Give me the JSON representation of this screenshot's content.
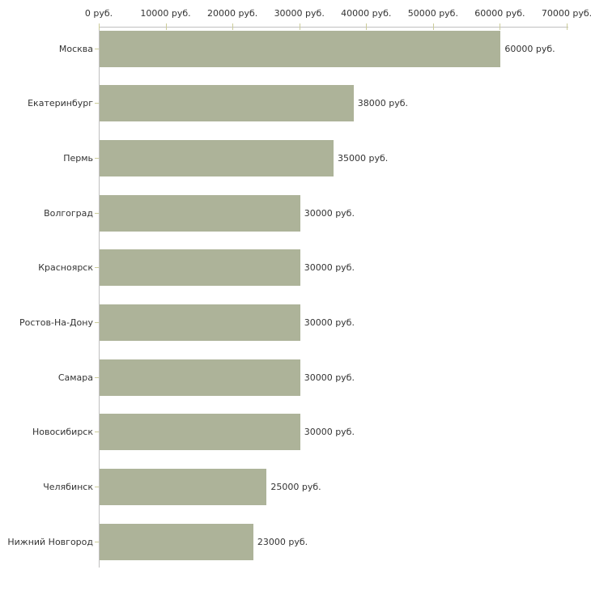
{
  "chart_data": {
    "type": "bar",
    "orientation": "horizontal",
    "title": "",
    "xlabel": "",
    "ylabel": "",
    "unit": "руб.",
    "categories": [
      "Москва",
      "Екатеринбург",
      "Пермь",
      "Волгоград",
      "Красноярск",
      "Ростов-На-Дону",
      "Самара",
      "Новосибирск",
      "Челябинск",
      "Нижний Новгород"
    ],
    "values": [
      60000,
      38000,
      35000,
      30000,
      30000,
      30000,
      30000,
      30000,
      25000,
      23000
    ],
    "value_labels": [
      "60000 руб.",
      "38000 руб.",
      "35000 руб.",
      "30000 руб.",
      "30000 руб.",
      "30000 руб.",
      "30000 руб.",
      "30000 руб.",
      "25000 руб.",
      "23000 руб."
    ],
    "x_ticks": [
      {
        "value": 0,
        "label": "0 руб."
      },
      {
        "value": 10000,
        "label": "10000 руб."
      },
      {
        "value": 20000,
        "label": "20000 руб."
      },
      {
        "value": 30000,
        "label": "30000 руб."
      },
      {
        "value": 40000,
        "label": "40000 руб."
      },
      {
        "value": 50000,
        "label": "50000 руб."
      },
      {
        "value": 60000,
        "label": "60000 руб."
      },
      {
        "value": 70000,
        "label": "70000 руб."
      }
    ],
    "xlim": [
      0,
      70000
    ],
    "grid": false,
    "legend": false,
    "axis_position": "top",
    "colors": {
      "bar": "#adb399",
      "axis_line": "#c0c0c0",
      "tick_mark": "#cccc99",
      "text": "#333333",
      "background": "#ffffff"
    }
  }
}
